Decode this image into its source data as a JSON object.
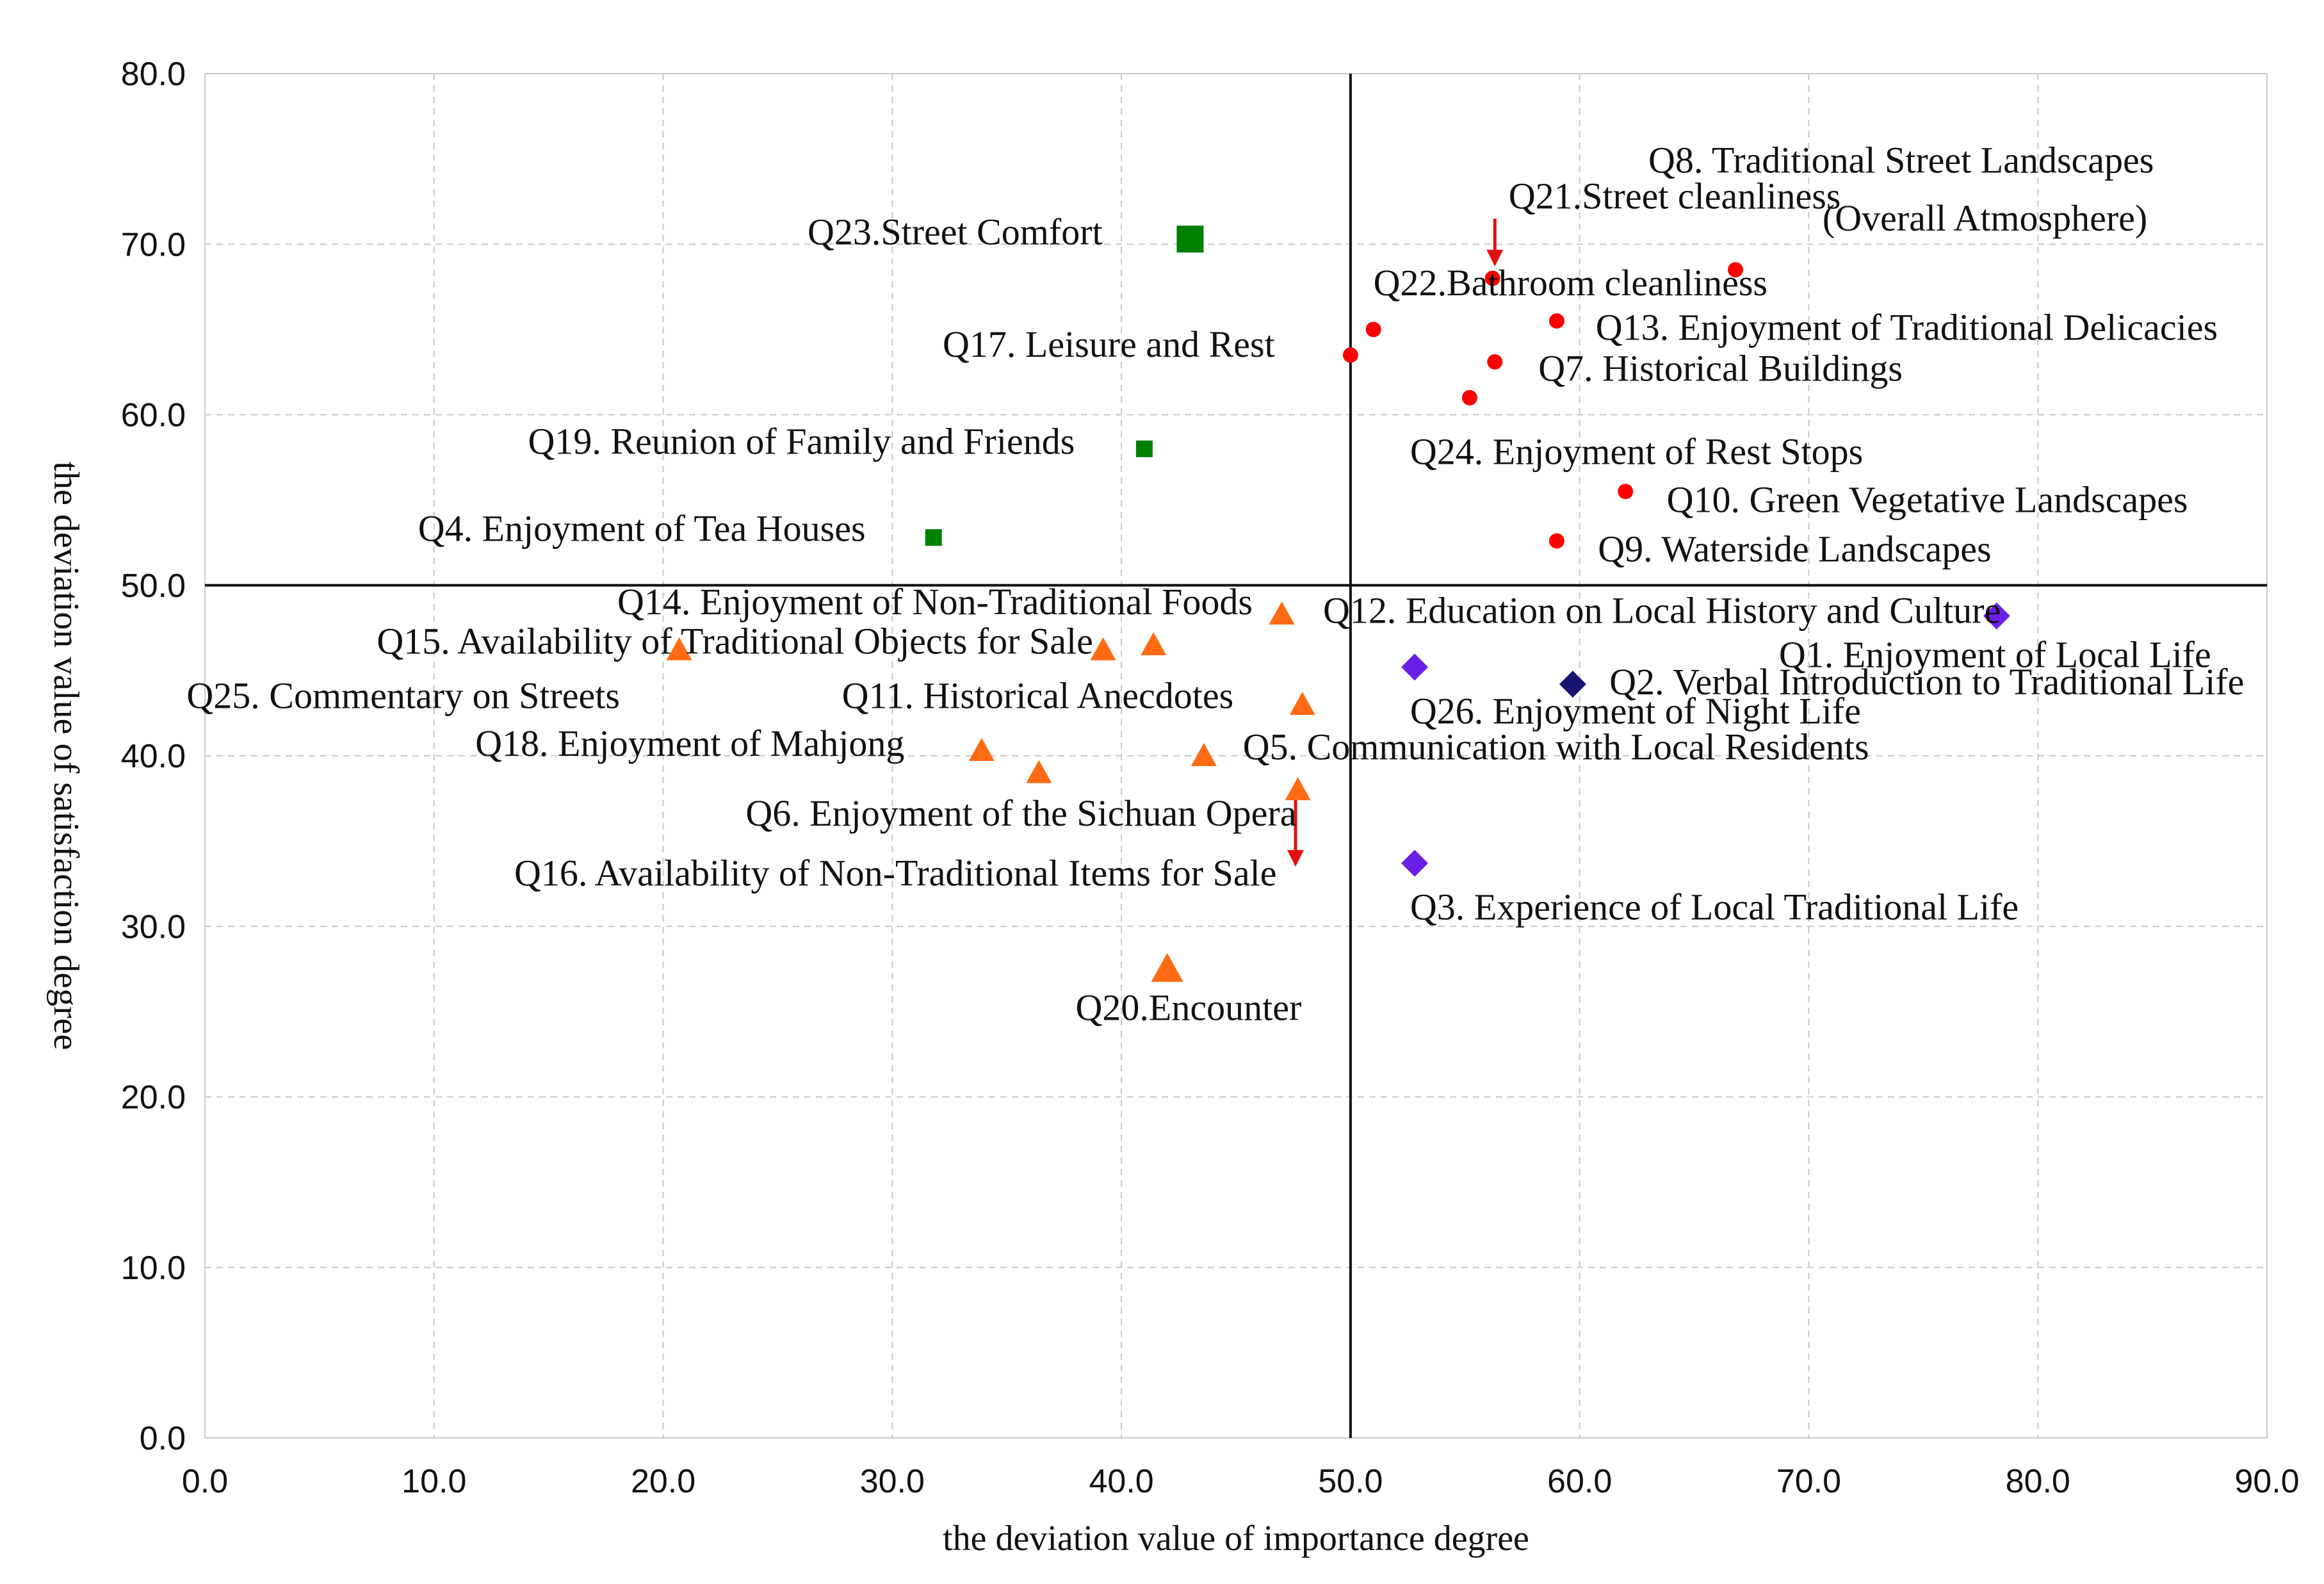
{
  "colors": {
    "red": "#ff0000",
    "green": "#008000",
    "orange": "#ff6a13",
    "purple": "#6a1fe6",
    "navy": "#1a1470",
    "arrow": "#e01010"
  },
  "chart_data": {
    "type": "scatter",
    "title": "",
    "xlabel": "the deviation value of importance degree",
    "ylabel": "the deviation value of satisfaction degree",
    "xlim": [
      0,
      90
    ],
    "ylim": [
      0,
      80
    ],
    "xticks": [
      0,
      10,
      20,
      30,
      40,
      50,
      60,
      70,
      80,
      90
    ],
    "yticks": [
      0,
      10,
      20,
      30,
      40,
      50,
      60,
      70,
      80
    ],
    "x_tick_labels": [
      "0.0",
      "10.0",
      "20.0",
      "30.0",
      "40.0",
      "50.0",
      "60.0",
      "70.0",
      "80.0",
      "90.0"
    ],
    "y_tick_labels": [
      "0.0",
      "10.0",
      "20.0",
      "30.0",
      "40.0",
      "50.0",
      "60.0",
      "70.0",
      "80.0"
    ],
    "grid": true,
    "reference_lines": {
      "x": 50,
      "y": 50
    },
    "series": [
      {
        "name": "group-red",
        "marker": "circle",
        "color": "#ff0000",
        "points": [
          {
            "x": 66.8,
            "y": 68.5
          },
          {
            "x": 56.2,
            "y": 68.0
          },
          {
            "x": 59.0,
            "y": 65.5
          },
          {
            "x": 51.0,
            "y": 65.0
          },
          {
            "x": 50.0,
            "y": 63.5
          },
          {
            "x": 56.3,
            "y": 63.1
          },
          {
            "x": 55.2,
            "y": 61.0
          },
          {
            "x": 62.0,
            "y": 55.5
          },
          {
            "x": 59.0,
            "y": 52.6
          }
        ]
      },
      {
        "name": "group-green",
        "marker": "square",
        "color": "#008000",
        "points": [
          {
            "x": 43.0,
            "y": 70.3,
            "size": "large"
          },
          {
            "x": 41.0,
            "y": 58.0
          },
          {
            "x": 31.8,
            "y": 52.8
          }
        ]
      },
      {
        "name": "group-orange",
        "marker": "triangle",
        "color": "#ff6a13",
        "points": [
          {
            "x": 47.0,
            "y": 48.3
          },
          {
            "x": 20.7,
            "y": 46.2
          },
          {
            "x": 39.2,
            "y": 46.2
          },
          {
            "x": 41.4,
            "y": 46.5
          },
          {
            "x": 47.9,
            "y": 43.0
          },
          {
            "x": 33.9,
            "y": 40.3
          },
          {
            "x": 43.6,
            "y": 40.0
          },
          {
            "x": 36.4,
            "y": 39.0
          },
          {
            "x": 47.7,
            "y": 38.0
          },
          {
            "x": 42.0,
            "y": 27.5,
            "size": "large"
          }
        ]
      },
      {
        "name": "group-purple",
        "marker": "diamond",
        "color": "#6a1fe6",
        "points": [
          {
            "x": 78.2,
            "y": 48.2
          },
          {
            "x": 52.8,
            "y": 45.2
          },
          {
            "x": 52.8,
            "y": 33.7
          }
        ]
      },
      {
        "name": "group-navy",
        "marker": "diamond",
        "color": "#1a1470",
        "points": [
          {
            "x": 59.7,
            "y": 44.2
          }
        ]
      }
    ],
    "annotations": [
      {
        "text": "Q8. Traditional Street Landscapes",
        "x": 63.0,
        "y": 74.2,
        "anchor": "start"
      },
      {
        "text": "(Overall Atmosphere)",
        "x": 70.6,
        "y": 70.8,
        "anchor": "start"
      },
      {
        "text": "Q21.Street cleanliness",
        "x": 56.9,
        "y": 72.1,
        "anchor": "start"
      },
      {
        "text": "Q23.Street Comfort",
        "x": 26.3,
        "y": 70.0,
        "anchor": "start"
      },
      {
        "text": "Q22.Bathroom cleanliness",
        "x": 51.0,
        "y": 67.0,
        "anchor": "start"
      },
      {
        "text": "Q13. Enjoyment of Traditional Delicacies",
        "x": 60.7,
        "y": 64.4,
        "anchor": "start"
      },
      {
        "text": "Q17. Leisure and Rest",
        "x": 32.2,
        "y": 63.4,
        "anchor": "start"
      },
      {
        "text": "Q7. Historical Buildings",
        "x": 58.2,
        "y": 62.0,
        "anchor": "start"
      },
      {
        "text": "Q19. Reunion of Family and Friends",
        "x": 14.1,
        "y": 57.7,
        "anchor": "start"
      },
      {
        "text": "Q24. Enjoyment of Rest Stops",
        "x": 52.6,
        "y": 57.1,
        "anchor": "start"
      },
      {
        "text": "Q10. Green Vegetative Landscapes",
        "x": 63.8,
        "y": 54.3,
        "anchor": "start"
      },
      {
        "text": "Q4. Enjoyment of Tea Houses",
        "x": 9.3,
        "y": 52.6,
        "anchor": "start"
      },
      {
        "text": "Q9. Waterside Landscapes",
        "x": 60.8,
        "y": 51.4,
        "anchor": "start"
      },
      {
        "text": "Q14. Enjoyment of Non-Traditional Foods",
        "x": 18.0,
        "y": 48.3,
        "anchor": "start"
      },
      {
        "text": "Q12. Education on Local History and Culture",
        "x": 48.8,
        "y": 47.8,
        "anchor": "start"
      },
      {
        "text": "Q15. Availability of Traditional Objects for Sale",
        "x": 7.5,
        "y": 46.0,
        "anchor": "start"
      },
      {
        "text": "Q1. Enjoyment of Local Life",
        "x": 68.7,
        "y": 45.2,
        "anchor": "start"
      },
      {
        "text": "Q2. Verbal Introduction to Traditional Life",
        "x": 61.3,
        "y": 43.6,
        "anchor": "start"
      },
      {
        "text": "Q25. Commentary on Streets",
        "x": -0.8,
        "y": 42.8,
        "anchor": "start"
      },
      {
        "text": "Q11. Historical Anecdotes",
        "x": 27.8,
        "y": 42.8,
        "anchor": "start"
      },
      {
        "text": "Q26. Enjoyment of Night Life",
        "x": 52.6,
        "y": 41.9,
        "anchor": "start"
      },
      {
        "text": "Q18. Enjoyment of Mahjong",
        "x": 11.8,
        "y": 40.0,
        "anchor": "start"
      },
      {
        "text": "Q5. Communication with Local Residents",
        "x": 45.3,
        "y": 39.8,
        "anchor": "start"
      },
      {
        "text": "Q6. Enjoyment of the Sichuan Opera",
        "x": 23.6,
        "y": 35.9,
        "anchor": "start"
      },
      {
        "text": "Q16. Availability of Non-Traditional Items for Sale",
        "x": 13.5,
        "y": 32.4,
        "anchor": "start"
      },
      {
        "text": "Q3. Experience of Local Traditional Life",
        "x": 52.6,
        "y": 30.4,
        "anchor": "start"
      },
      {
        "text": "Q20.Encounter",
        "x": 38.0,
        "y": 24.5,
        "anchor": "start"
      }
    ],
    "arrows": [
      {
        "from": [
          56.3,
          71.5
        ],
        "to": [
          56.3,
          68.7
        ]
      },
      {
        "from": [
          47.6,
          37.5
        ],
        "to": [
          47.6,
          33.5
        ]
      }
    ]
  }
}
